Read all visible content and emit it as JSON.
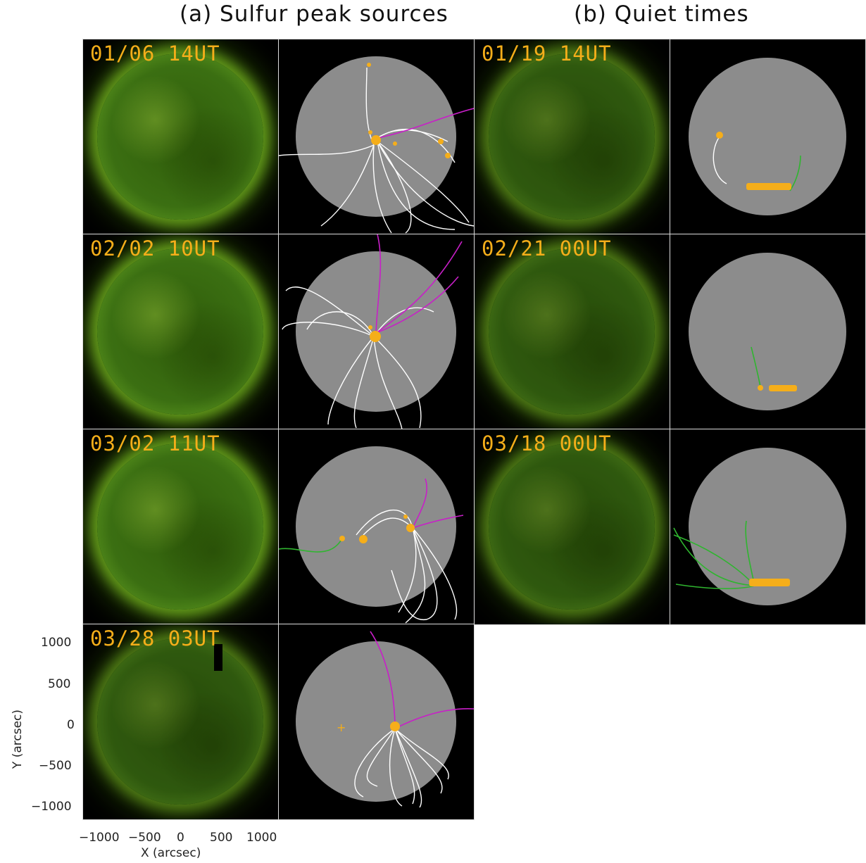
{
  "titles": {
    "a": "(a) Sulfur peak sources",
    "b": "(b) Quiet times"
  },
  "panel_labels": {
    "a1": "01/06 14UT",
    "a2": "02/02 10UT",
    "a3": "03/02 11UT",
    "a4": "03/28 03UT",
    "b1": "01/19 14UT",
    "b2": "02/21 00UT",
    "b3": "03/18 00UT"
  },
  "axes": {
    "y_title": "Y (arcsec)",
    "x_title": "X (arcsec)",
    "y_ticks": [
      "1000",
      "500",
      "0",
      "−500",
      "−1000"
    ],
    "x_ticks": [
      "−1000",
      "−500",
      "0",
      "500",
      "1000"
    ]
  },
  "colors": {
    "footpoint": "#f5ae1a",
    "open_field_a": "#c81fc8",
    "open_field_b": "#2fb52f",
    "closed_field": "#ffffff"
  }
}
